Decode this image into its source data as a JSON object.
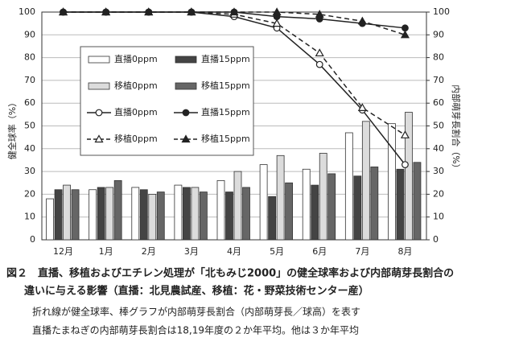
{
  "chart_data": {
    "type": "combo",
    "categories": [
      "12月",
      "1月",
      "2月",
      "3月",
      "4月",
      "5月",
      "6月",
      "7月",
      "8月"
    ],
    "ylabel": "健全球率（%）",
    "y2label": "内部萌芽長割合（%）",
    "ylim": [
      0,
      100
    ],
    "yticks": [
      0,
      10,
      20,
      30,
      40,
      50,
      60,
      70,
      80,
      90,
      100
    ],
    "y2lim": [
      0,
      100
    ],
    "y2ticks": [
      0,
      10,
      20,
      30,
      40,
      50,
      60,
      70,
      80,
      90,
      100
    ],
    "series": [
      {
        "name": "直播0ppm",
        "type": "bar",
        "axis": "y2",
        "color": "#ffffff",
        "values": [
          18,
          22,
          23,
          24,
          26,
          33,
          31,
          47,
          51
        ]
      },
      {
        "name": "直播15ppm",
        "type": "bar",
        "axis": "y2",
        "color": "#444444",
        "values": [
          22,
          23,
          22,
          23,
          21,
          19,
          24,
          28,
          31
        ]
      },
      {
        "name": "移植0ppm",
        "type": "bar",
        "axis": "y2",
        "color": "#dcdcdc",
        "values": [
          24,
          23,
          20,
          23,
          30,
          37,
          38,
          52,
          56
        ]
      },
      {
        "name": "移植15ppm",
        "type": "bar",
        "axis": "y2",
        "color": "#666666",
        "values": [
          22,
          26,
          21,
          21,
          23,
          25,
          29,
          32,
          34
        ]
      },
      {
        "name": "直播0ppm",
        "type": "line",
        "line_style": "solid",
        "marker": "circle-open",
        "color": "#222222",
        "values": [
          100,
          100,
          100,
          100,
          98,
          93,
          77,
          57,
          33
        ]
      },
      {
        "name": "直播15ppm",
        "type": "line",
        "line_style": "solid",
        "marker": "circle-filled",
        "color": "#222222",
        "values": [
          100,
          100,
          100,
          100,
          100,
          98,
          97,
          95,
          93
        ]
      },
      {
        "name": "移植0ppm",
        "type": "line",
        "line_style": "dashed",
        "marker": "triangle-open",
        "color": "#222222",
        "values": [
          100,
          100,
          100,
          100,
          99,
          95,
          82,
          58,
          46
        ]
      },
      {
        "name": "移植15ppm",
        "type": "line",
        "line_style": "dashed",
        "marker": "triangle-filled",
        "color": "#222222",
        "values": [
          100,
          100,
          100,
          100,
          100,
          100,
          99,
          96,
          90
        ]
      }
    ],
    "grid": true,
    "caption": [
      "図２　直播、移植およびエチレン処理が「北もみじ2000」の健全球率および内部萌芽長割合の",
      "違いに与える影響（直播：北見農試産、移植：花・野菜技術センター産）"
    ],
    "notes": [
      "折れ線が健全球率、棒グラフが内部萌芽長割合（内部萌芽長／球高）を表す",
      "直播たまねぎの内部萌芽長割合は18,19年度の２か年平均。他は３か年平均"
    ]
  }
}
